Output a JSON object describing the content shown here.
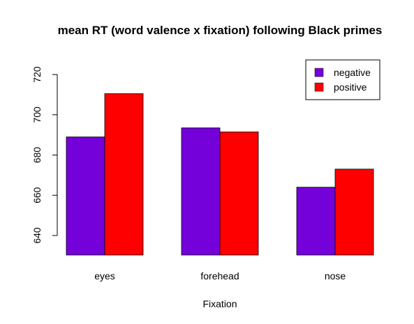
{
  "chart_data": {
    "type": "bar",
    "title": "mean RT (word valence x fixation) following Black primes",
    "xlabel": "Fixation",
    "ylabel": "",
    "categories": [
      "eyes",
      "forehead",
      "nose"
    ],
    "series": [
      {
        "name": "negative",
        "color": "#7400DA",
        "values": [
          689,
          693.5,
          664
        ]
      },
      {
        "name": "positive",
        "color": "#FF0000",
        "values": [
          710.5,
          691.5,
          673
        ]
      }
    ],
    "ylim": [
      630,
      720
    ],
    "yticks": [
      640,
      660,
      680,
      700,
      720
    ],
    "grid": false,
    "legend_position": "top-right"
  }
}
